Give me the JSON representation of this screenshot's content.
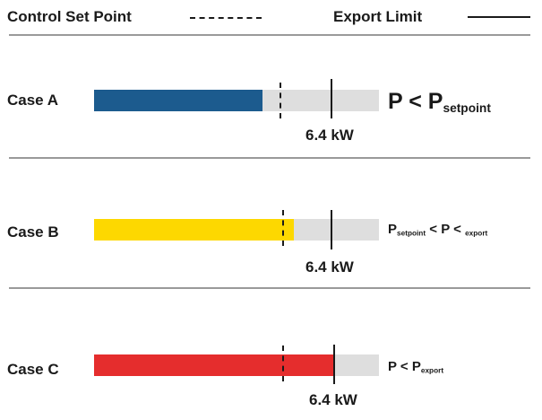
{
  "legend": {
    "setpoint_label": "Control Set Point",
    "limit_label": "Export Limit"
  },
  "colors": {
    "case_a": "#1c5b8e",
    "case_b": "#fdd800",
    "case_c": "#e52d2d",
    "track": "#dedede"
  },
  "cases": [
    {
      "label": "Case A",
      "fill_fraction": 0.59,
      "setpoint_fraction": 0.65,
      "limit_fraction": 0.83,
      "limit_value": "6.4 kW",
      "formula": {
        "p1": "P",
        "op1": "<",
        "p2": "P",
        "sub2": "setpoint"
      }
    },
    {
      "label": "Case B",
      "fill_fraction": 0.7,
      "setpoint_fraction": 0.66,
      "limit_fraction": 0.83,
      "limit_value": "6.4 kW",
      "formula": {
        "p1": "P",
        "sub1": "setpoint",
        "op1": "<",
        "p2": "P",
        "op2": "<",
        "sub3": "export"
      }
    },
    {
      "label": "Case C",
      "fill_fraction": 0.84,
      "setpoint_fraction": 0.66,
      "limit_fraction": 0.84,
      "limit_value": "6.4 kW",
      "formula": {
        "p1": "P",
        "op1": "<",
        "p2": "P",
        "sub2": "export"
      }
    }
  ]
}
